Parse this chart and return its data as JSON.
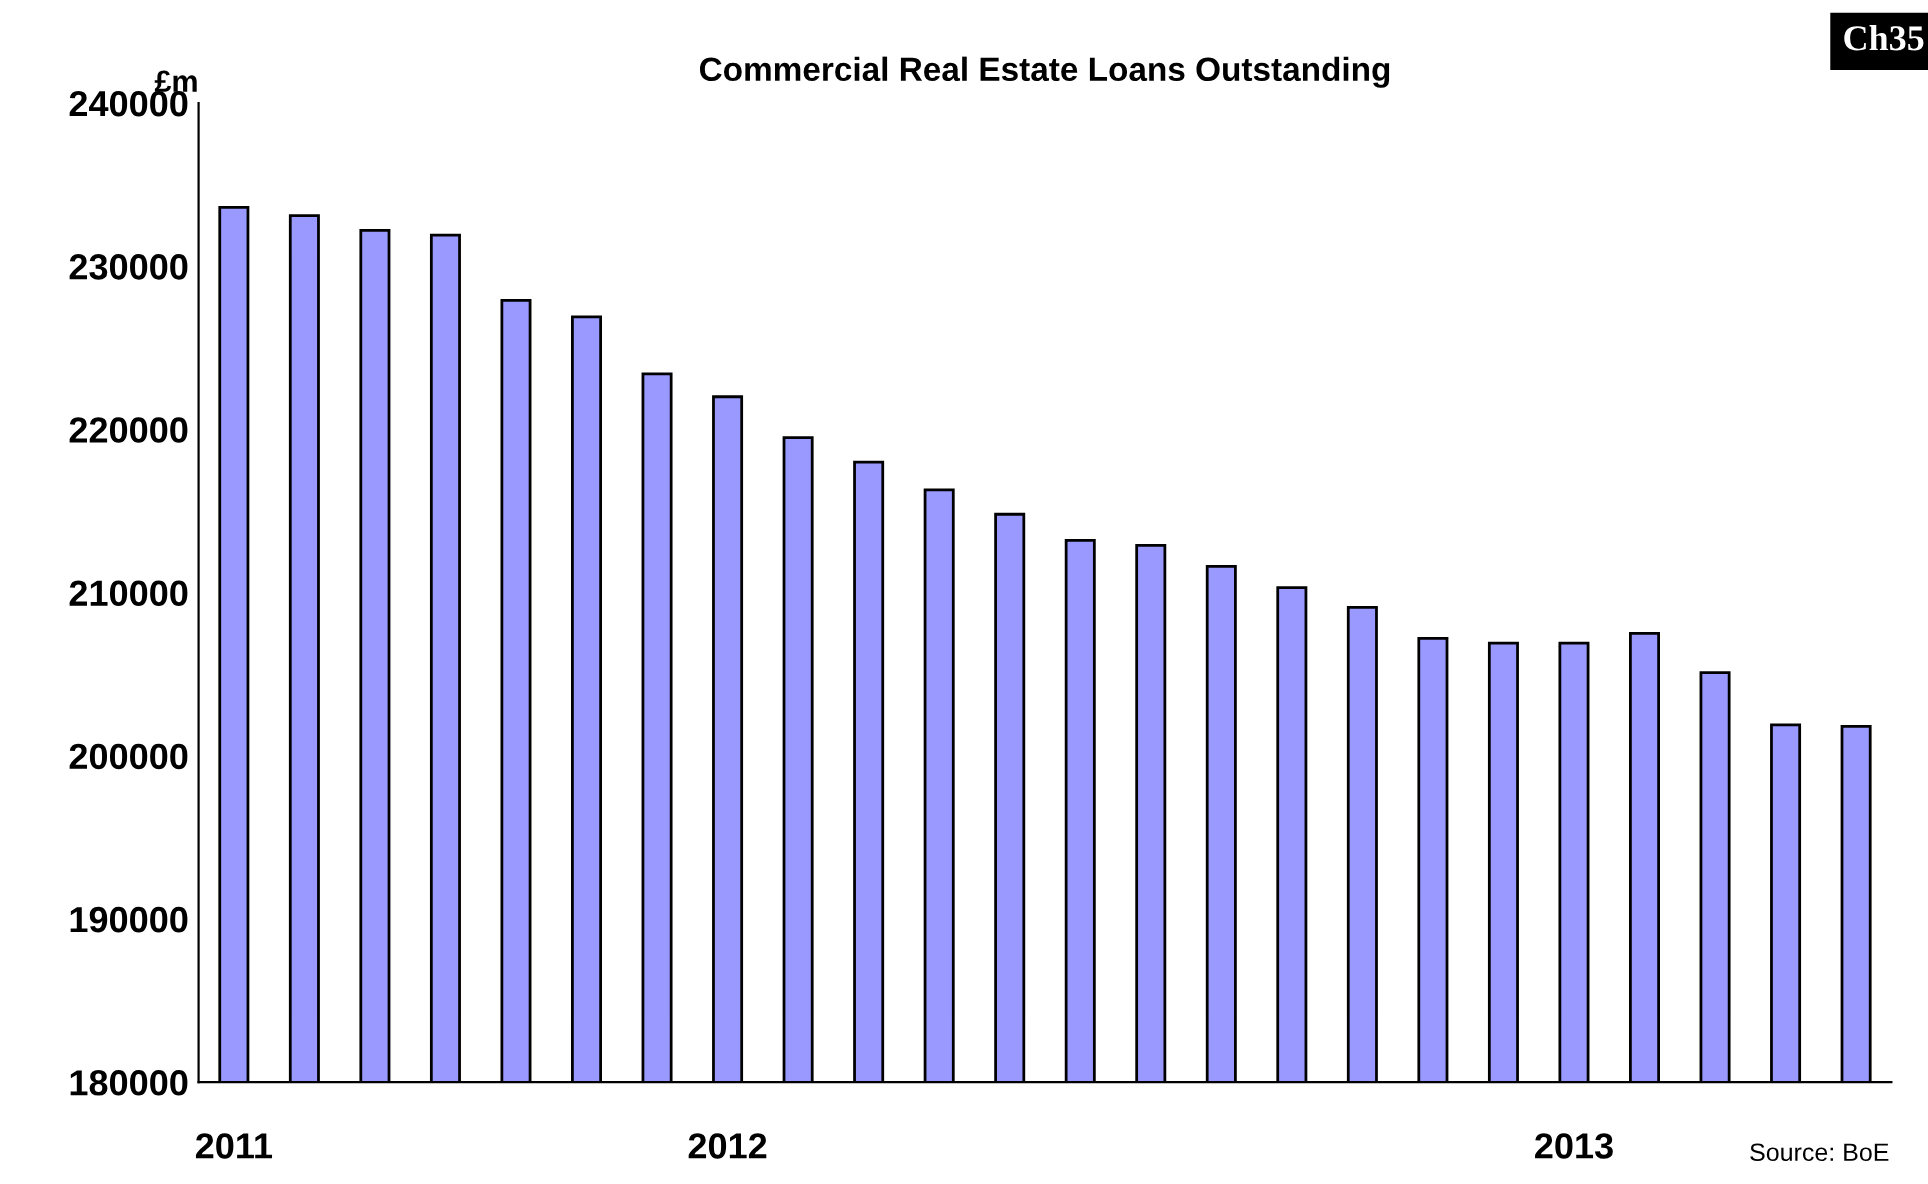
{
  "chart_data": {
    "type": "bar",
    "title": "Commercial Real Estate Loans Outstanding",
    "ylabel": "£m",
    "categories": [
      "2011",
      null,
      null,
      null,
      null,
      null,
      null,
      "2012",
      null,
      null,
      null,
      null,
      null,
      null,
      null,
      null,
      null,
      null,
      null,
      "2013",
      null,
      null,
      null,
      null
    ],
    "values": [
      233600,
      233100,
      232200,
      231900,
      227900,
      226900,
      223400,
      222000,
      219500,
      218000,
      216300,
      214800,
      213200,
      212900,
      211600,
      210300,
      209100,
      207200,
      206900,
      206900,
      207500,
      205100,
      201900,
      201800
    ],
    "color": "#9999ff",
    "ylim": [
      180000,
      240000
    ],
    "yticks": [
      180000,
      190000,
      200000,
      210000,
      220000,
      230000,
      240000
    ],
    "grid": false,
    "annotations": [
      "Ch35",
      "Source: BoE"
    ]
  }
}
